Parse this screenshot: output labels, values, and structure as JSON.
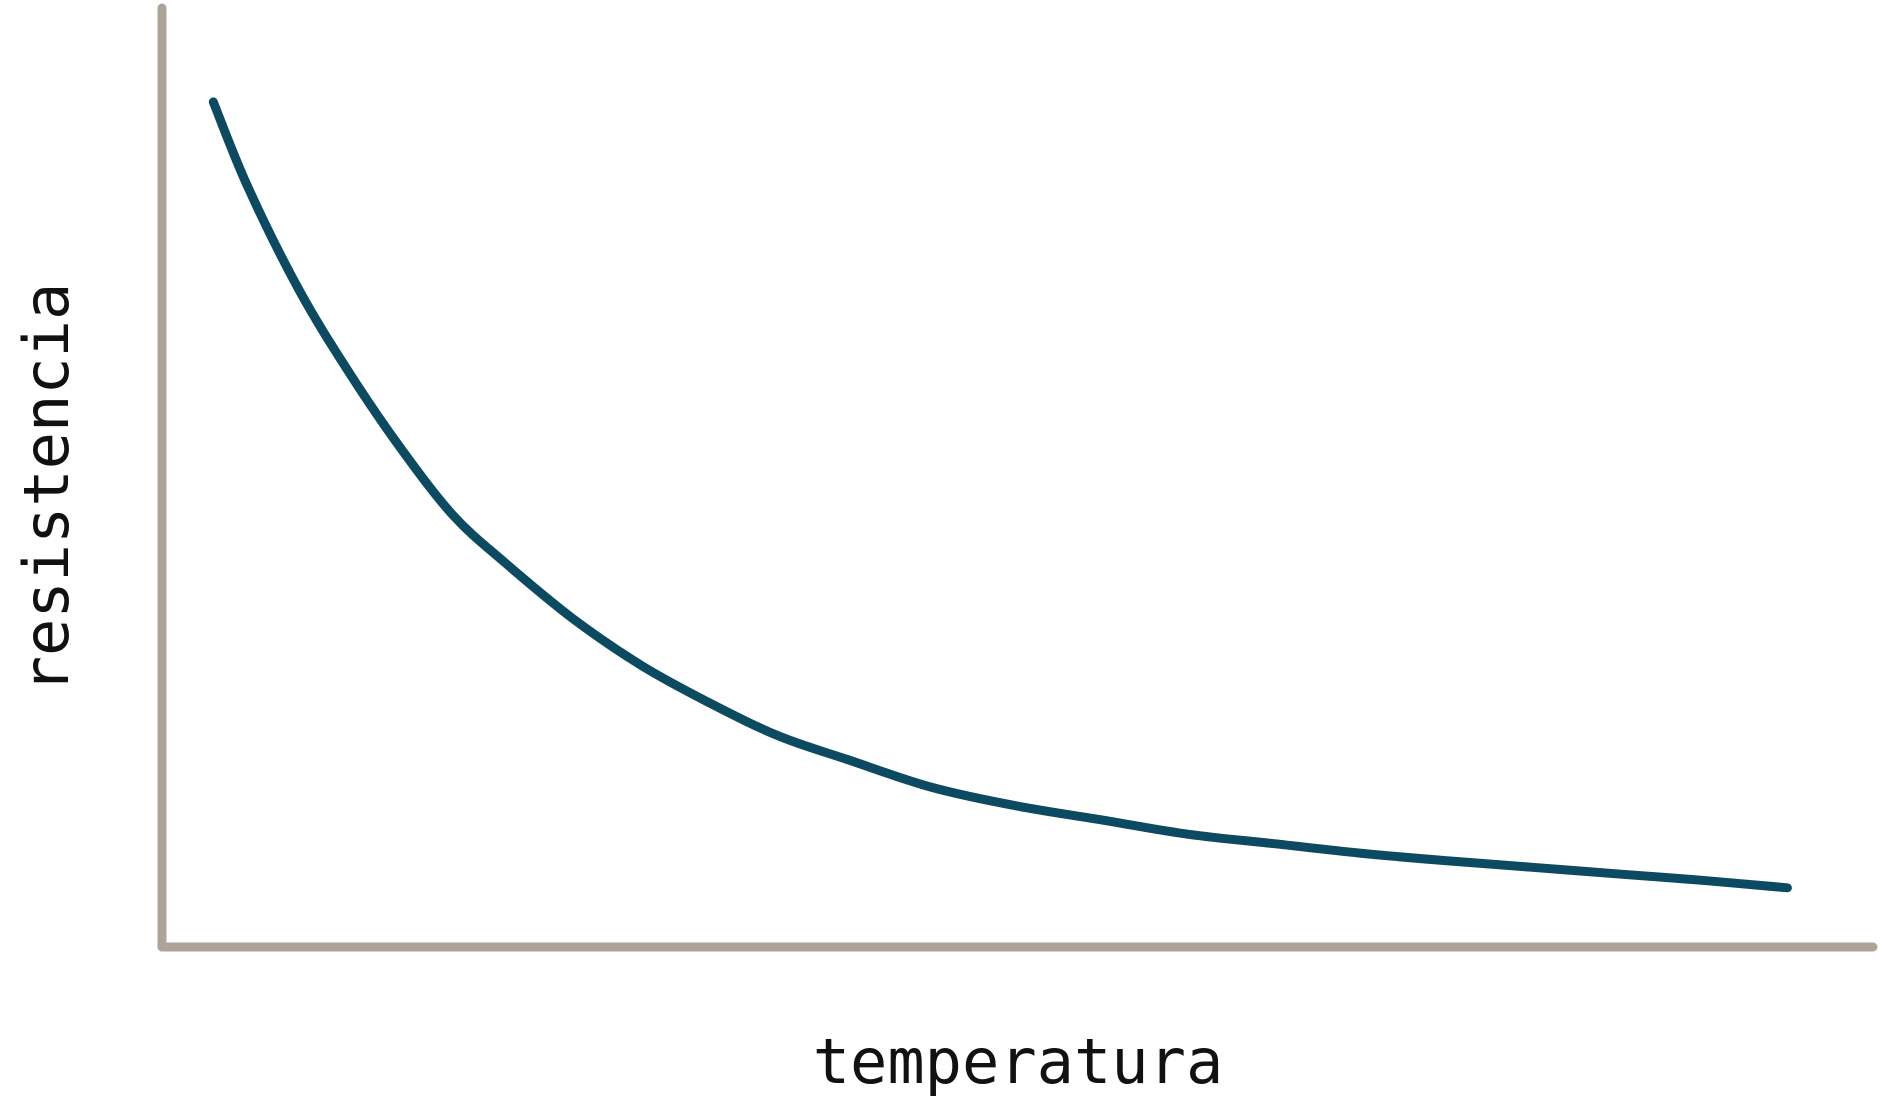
{
  "chart_data": {
    "type": "line",
    "title": "",
    "xlabel": "temperatura",
    "ylabel": "resistencia",
    "xlim": [
      0,
      1
    ],
    "ylim": [
      0,
      1
    ],
    "grid": false,
    "legend": "none",
    "x_ticks": [],
    "y_ticks": [],
    "series": [
      {
        "x": [
          0.03,
          0.05,
          0.08,
          0.11,
          0.14,
          0.17,
          0.2,
          0.24,
          0.28,
          0.32,
          0.36,
          0.4,
          0.45,
          0.5,
          0.55,
          0.6,
          0.65,
          0.7,
          0.75,
          0.8,
          0.85,
          0.9,
          0.95
        ],
        "y": [
          0.9,
          0.81,
          0.7,
          0.61,
          0.53,
          0.46,
          0.41,
          0.35,
          0.3,
          0.26,
          0.225,
          0.2,
          0.17,
          0.15,
          0.135,
          0.12,
          0.11,
          0.1,
          0.092,
          0.085,
          0.078,
          0.071,
          0.063
        ]
      }
    ]
  },
  "colors": {
    "line": "#0b4a60",
    "axis": "#ada397",
    "text": "#111111",
    "background": "#ffffff"
  }
}
